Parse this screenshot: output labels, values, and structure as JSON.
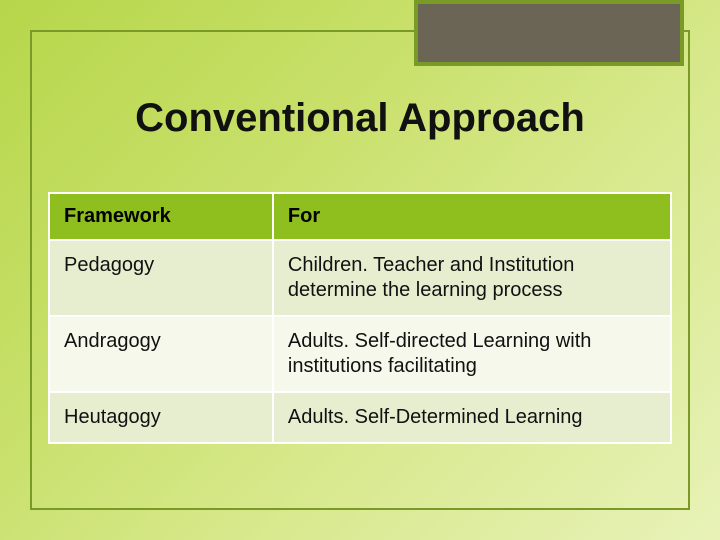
{
  "slide": {
    "title": "Conventional Approach",
    "background_gradient": [
      "#b7d64a",
      "#c8e06a",
      "#d6e88a",
      "#e8f2b8"
    ],
    "frame_border_color": "#7a9a28",
    "corner_box": {
      "fill": "#6a6554",
      "border": "#7a9a28"
    }
  },
  "table": {
    "type": "table",
    "header_bg": "#8fbe1f",
    "row_alt_bg": "#e7eed0",
    "row_plain_bg": "#f5f8ea",
    "border_color": "#ffffff",
    "col_widths": [
      "36%",
      "64%"
    ],
    "font_size": 20,
    "columns": [
      "Framework",
      "For"
    ],
    "rows": [
      {
        "framework": "Pedagogy",
        "for": "Children. Teacher and Institution determine the learning process"
      },
      {
        "framework": "Andragogy",
        "for": "Adults. Self-directed Learning with institutions facilitating"
      },
      {
        "framework": "Heutagogy",
        "for": "Adults. Self-Determined Learning"
      }
    ]
  }
}
